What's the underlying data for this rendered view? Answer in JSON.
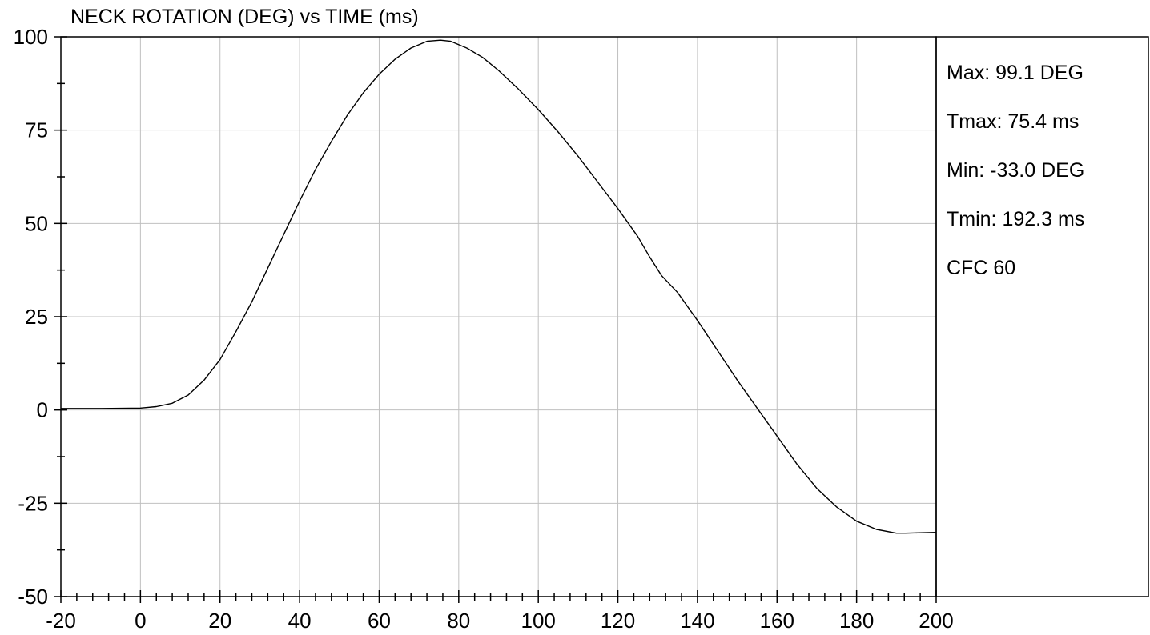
{
  "title": "NECK ROTATION (DEG) vs TIME (ms)",
  "stats": {
    "max": "Max: 99.1 DEG",
    "tmax": "Tmax: 75.4 ms",
    "min": "Min: -33.0 DEG",
    "tmin": "Tmin: 192.3 ms",
    "filter": "CFC 60"
  },
  "chart_data": {
    "type": "line",
    "title": "NECK ROTATION (DEG) vs TIME (ms)",
    "xlim": [
      -20,
      200
    ],
    "ylim": [
      -50,
      100
    ],
    "xticks": [
      -20,
      0,
      20,
      40,
      60,
      80,
      100,
      120,
      140,
      160,
      180,
      200
    ],
    "yticks": [
      -50,
      -25,
      0,
      25,
      50,
      75,
      100
    ],
    "grid": true,
    "line_color": "#000000",
    "grid_color": "#c0c0c0",
    "series": [
      {
        "x": [
          -20,
          -10,
          0,
          4,
          8,
          12,
          16,
          20,
          24,
          28,
          32,
          36,
          40,
          44,
          48,
          52,
          56,
          60,
          64,
          68,
          72,
          75.4,
          78,
          82,
          86,
          90,
          95,
          100,
          105,
          110,
          115,
          120,
          125,
          128,
          131,
          135,
          140,
          145,
          150,
          155,
          160,
          165,
          170,
          175,
          180,
          185,
          190,
          192.3,
          196,
          200
        ],
        "y": [
          0.4,
          0.4,
          0.5,
          0.9,
          1.8,
          4,
          8,
          13.5,
          21,
          29,
          38,
          47,
          56,
          64.5,
          72,
          79,
          85,
          90,
          94,
          97,
          98.8,
          99.1,
          98.8,
          97,
          94.5,
          91,
          86,
          80.5,
          74.5,
          68,
          61,
          54,
          46.5,
          41,
          36,
          31.5,
          24,
          16,
          8,
          0.5,
          -7,
          -14.5,
          -21,
          -26,
          -29.8,
          -32,
          -33,
          -33,
          -32.9,
          -32.8
        ]
      }
    ]
  }
}
